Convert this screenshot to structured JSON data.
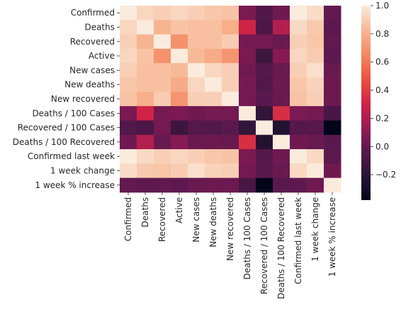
{
  "chart_data": {
    "type": "heatmap",
    "title": "",
    "xlabel": "",
    "ylabel": "",
    "labels": [
      "Confirmed",
      "Deaths",
      "Recovered",
      "Active",
      "New cases",
      "New deaths",
      "New recovered",
      "Deaths / 100 Cases",
      "Recovered / 100 Cases",
      "Deaths / 100 Recovered",
      "Confirmed last week",
      "1 week change",
      "1 week % increase"
    ],
    "matrix": [
      [
        1.0,
        0.93,
        0.91,
        0.93,
        0.91,
        0.88,
        0.87,
        0.06,
        -0.06,
        0.03,
        1.0,
        0.95,
        -0.01
      ],
      [
        0.93,
        1.0,
        0.82,
        0.87,
        0.86,
        0.86,
        0.8,
        0.31,
        -0.08,
        0.22,
        0.94,
        0.89,
        -0.02
      ],
      [
        0.91,
        0.82,
        1.0,
        0.69,
        0.86,
        0.86,
        0.9,
        0.05,
        0.04,
        0.01,
        0.91,
        0.88,
        -0.01
      ],
      [
        0.93,
        0.87,
        0.69,
        1.0,
        0.84,
        0.79,
        0.7,
        0.06,
        -0.13,
        0.09,
        0.93,
        0.9,
        -0.02
      ],
      [
        0.91,
        0.86,
        0.86,
        0.84,
        1.0,
        0.93,
        0.91,
        0.03,
        -0.05,
        0.01,
        0.91,
        0.96,
        0.01
      ],
      [
        0.88,
        0.86,
        0.86,
        0.79,
        0.93,
        1.0,
        0.91,
        0.05,
        -0.06,
        0.02,
        0.88,
        0.92,
        0.02
      ],
      [
        0.87,
        0.8,
        0.9,
        0.7,
        0.91,
        0.91,
        1.0,
        0.04,
        -0.03,
        0.01,
        0.87,
        0.91,
        0.02
      ],
      [
        0.06,
        0.31,
        0.05,
        0.06,
        0.03,
        0.05,
        0.04,
        1.0,
        -0.17,
        0.35,
        0.06,
        0.04,
        -0.09
      ],
      [
        -0.06,
        -0.08,
        0.04,
        -0.13,
        -0.05,
        -0.06,
        -0.03,
        -0.17,
        1.0,
        -0.23,
        -0.05,
        -0.04,
        -0.38
      ],
      [
        0.03,
        0.22,
        0.01,
        0.09,
        0.01,
        0.02,
        0.01,
        0.35,
        -0.23,
        1.0,
        0.03,
        0.01,
        -0.03
      ],
      [
        1.0,
        0.94,
        0.91,
        0.93,
        0.91,
        0.88,
        0.87,
        0.06,
        -0.05,
        0.03,
        1.0,
        0.94,
        -0.02
      ],
      [
        0.95,
        0.89,
        0.88,
        0.9,
        0.96,
        0.92,
        0.91,
        0.04,
        -0.04,
        0.01,
        0.94,
        1.0,
        0.03
      ],
      [
        -0.01,
        -0.02,
        -0.01,
        -0.02,
        0.01,
        0.02,
        0.02,
        -0.09,
        -0.38,
        -0.03,
        -0.02,
        0.03,
        1.0
      ]
    ],
    "vmin": -0.38,
    "vmax": 1.0,
    "colormap": "rocket",
    "colorbar_ticks": [
      "1.0",
      "0.8",
      "0.6",
      "0.4",
      "0.2",
      "0.0",
      "−0.2"
    ],
    "colorbar_tick_values": [
      1.0,
      0.8,
      0.6,
      0.4,
      0.2,
      0.0,
      -0.2
    ],
    "legend_position": "right",
    "grid": false
  }
}
